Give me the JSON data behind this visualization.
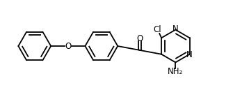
{
  "bg_color": "#ffffff",
  "line_color": "#000000",
  "text_color": "#000000",
  "line_width": 1.3,
  "font_size": 8.5,
  "figsize": [
    3.58,
    1.39
  ],
  "dpi": 100,
  "xlim": [
    0,
    10
  ],
  "ylim": [
    0,
    3.9
  ]
}
